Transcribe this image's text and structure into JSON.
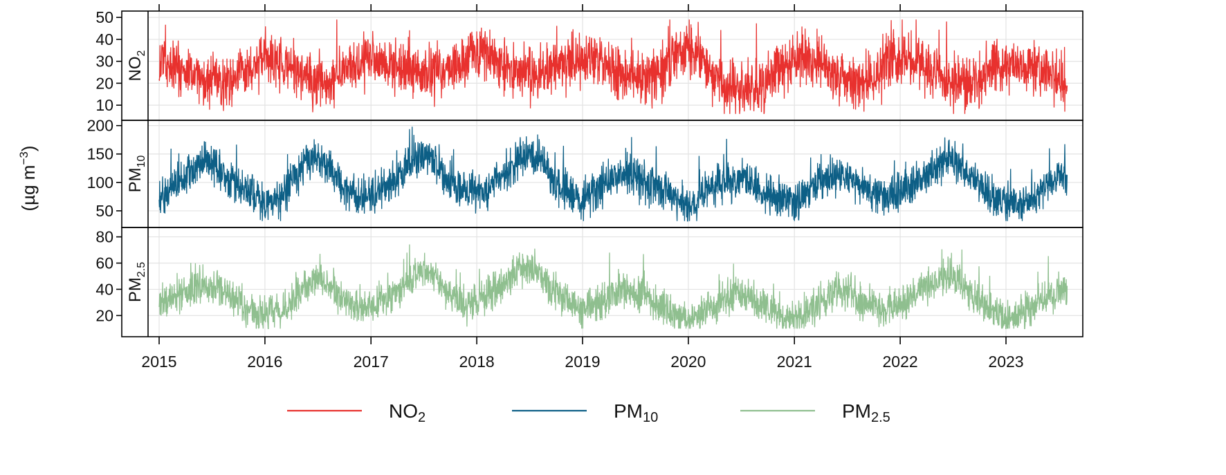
{
  "chart_data": {
    "type": "line",
    "ylabel": "(µg m",
    "ylabel_sup": "−3",
    "ylabel_close": ")",
    "grid": true,
    "legend_placement": "bottom",
    "x_ticks": [
      "2015",
      "2016",
      "2017",
      "2018",
      "2019",
      "2020",
      "2021",
      "2022",
      "2023"
    ],
    "x_range": [
      "2015-01-01",
      "2023-07-31"
    ],
    "panels": [
      {
        "series_key": "NO2",
        "label_main": "NO",
        "label_sub": "2",
        "ylim": [
          5,
          51
        ],
        "yticks": [
          10,
          20,
          30,
          40,
          50
        ],
        "color": "#e8312e",
        "monthly_mean": [
          31,
          29,
          27,
          25,
          23,
          22,
          21,
          21,
          22,
          24,
          26,
          27,
          32,
          30,
          28,
          26,
          24,
          22,
          21,
          21,
          22,
          25,
          27,
          29,
          33,
          31,
          29,
          27,
          25,
          24,
          24,
          25,
          26,
          27,
          29,
          31,
          35,
          34,
          32,
          29,
          26,
          24,
          23,
          24,
          25,
          27,
          29,
          31,
          32,
          31,
          30,
          28,
          26,
          24,
          23,
          23,
          22,
          24,
          28,
          33,
          36,
          34,
          28,
          22,
          19,
          17,
          16,
          16,
          17,
          21,
          25,
          28,
          31,
          32,
          30,
          28,
          26,
          23,
          21,
          20,
          20,
          22,
          26,
          30,
          33,
          31,
          29,
          27,
          25,
          22,
          20,
          19,
          18,
          21,
          25,
          28,
          28,
          28,
          27,
          27,
          26,
          25,
          22,
          19
        ],
        "noise": 10,
        "min_value": 6,
        "max_value": 49
      },
      {
        "series_key": "PM10",
        "label_main": "PM",
        "label_sub": "10",
        "ylim": [
          28,
          202
        ],
        "yticks": [
          50,
          100,
          150,
          200
        ],
        "color": "#0d5f86",
        "monthly_mean": [
          70,
          80,
          100,
          115,
          125,
          135,
          135,
          120,
          105,
          90,
          80,
          70,
          62,
          65,
          75,
          100,
          120,
          140,
          145,
          130,
          110,
          90,
          80,
          75,
          80,
          85,
          95,
          110,
          125,
          140,
          150,
          140,
          120,
          100,
          90,
          85,
          80,
          85,
          100,
          115,
          125,
          140,
          150,
          140,
          120,
          100,
          90,
          80,
          70,
          80,
          95,
          105,
          110,
          115,
          110,
          100,
          95,
          85,
          75,
          65,
          60,
          70,
          85,
          95,
          100,
          105,
          105,
          100,
          90,
          80,
          70,
          65,
          65,
          75,
          90,
          100,
          105,
          110,
          110,
          100,
          90,
          85,
          80,
          75,
          80,
          90,
          105,
          115,
          125,
          135,
          140,
          130,
          110,
          90,
          80,
          70,
          60,
          60,
          65,
          75,
          85,
          95,
          105,
          110
        ],
        "noise": 28,
        "min_value": 32,
        "max_value": 198
      },
      {
        "series_key": "PM2.5",
        "label_main": "PM",
        "label_sub": "2.5",
        "ylim": [
          7,
          84
        ],
        "yticks": [
          20,
          40,
          60,
          80
        ],
        "color": "#8fbf8f",
        "monthly_mean": [
          30,
          32,
          35,
          38,
          40,
          42,
          42,
          40,
          35,
          30,
          25,
          22,
          20,
          21,
          24,
          30,
          38,
          45,
          48,
          45,
          38,
          32,
          27,
          25,
          28,
          30,
          33,
          38,
          44,
          50,
          55,
          50,
          42,
          35,
          30,
          28,
          30,
          32,
          38,
          45,
          50,
          55,
          58,
          52,
          45,
          38,
          32,
          28,
          25,
          27,
          30,
          35,
          38,
          40,
          38,
          35,
          30,
          26,
          22,
          19,
          18,
          20,
          24,
          28,
          32,
          35,
          36,
          34,
          30,
          26,
          22,
          19,
          18,
          20,
          25,
          30,
          35,
          38,
          38,
          35,
          30,
          27,
          25,
          25,
          28,
          32,
          38,
          42,
          46,
          50,
          50,
          45,
          38,
          32,
          27,
          22,
          17,
          18,
          22,
          27,
          32,
          36,
          38,
          40
        ],
        "noise": 11,
        "min_value": 10,
        "max_value": 82
      }
    ],
    "legend": [
      {
        "key": "NO2",
        "label_main": "NO",
        "label_sub": "2",
        "color": "#e8312e"
      },
      {
        "key": "PM10",
        "label_main": "PM",
        "label_sub": "10",
        "color": "#0d5f86"
      },
      {
        "key": "PM2.5",
        "label_main": "PM",
        "label_sub": "2.5",
        "color": "#8fbf8f"
      }
    ]
  }
}
